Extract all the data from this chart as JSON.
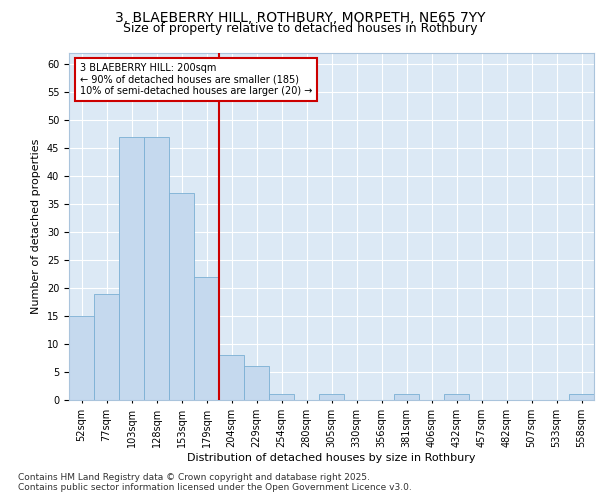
{
  "title_line1": "3, BLAEBERRY HILL, ROTHBURY, MORPETH, NE65 7YY",
  "title_line2": "Size of property relative to detached houses in Rothbury",
  "xlabel": "Distribution of detached houses by size in Rothbury",
  "ylabel": "Number of detached properties",
  "footer": "Contains HM Land Registry data © Crown copyright and database right 2025.\nContains public sector information licensed under the Open Government Licence v3.0.",
  "categories": [
    "52sqm",
    "77sqm",
    "103sqm",
    "128sqm",
    "153sqm",
    "179sqm",
    "204sqm",
    "229sqm",
    "254sqm",
    "280sqm",
    "305sqm",
    "330sqm",
    "356sqm",
    "381sqm",
    "406sqm",
    "432sqm",
    "457sqm",
    "482sqm",
    "507sqm",
    "533sqm",
    "558sqm"
  ],
  "values": [
    15,
    19,
    47,
    47,
    37,
    22,
    8,
    6,
    1,
    0,
    1,
    0,
    0,
    1,
    0,
    1,
    0,
    0,
    0,
    0,
    1
  ],
  "bar_color": "#c5d9ee",
  "bar_edge_color": "#7bafd4",
  "vline_color": "#cc0000",
  "annotation_text": "3 BLAEBERRY HILL: 200sqm\n← 90% of detached houses are smaller (185)\n10% of semi-detached houses are larger (20) →",
  "annotation_box_color": "#ffffff",
  "annotation_box_edge_color": "#cc0000",
  "ylim": [
    0,
    62
  ],
  "yticks": [
    0,
    5,
    10,
    15,
    20,
    25,
    30,
    35,
    40,
    45,
    50,
    55,
    60
  ],
  "plot_bg_color": "#dce9f5",
  "fig_bg_color": "#ffffff",
  "title_fontsize": 10,
  "subtitle_fontsize": 9,
  "tick_fontsize": 7,
  "label_fontsize": 8,
  "annotation_fontsize": 7,
  "footer_fontsize": 6.5
}
